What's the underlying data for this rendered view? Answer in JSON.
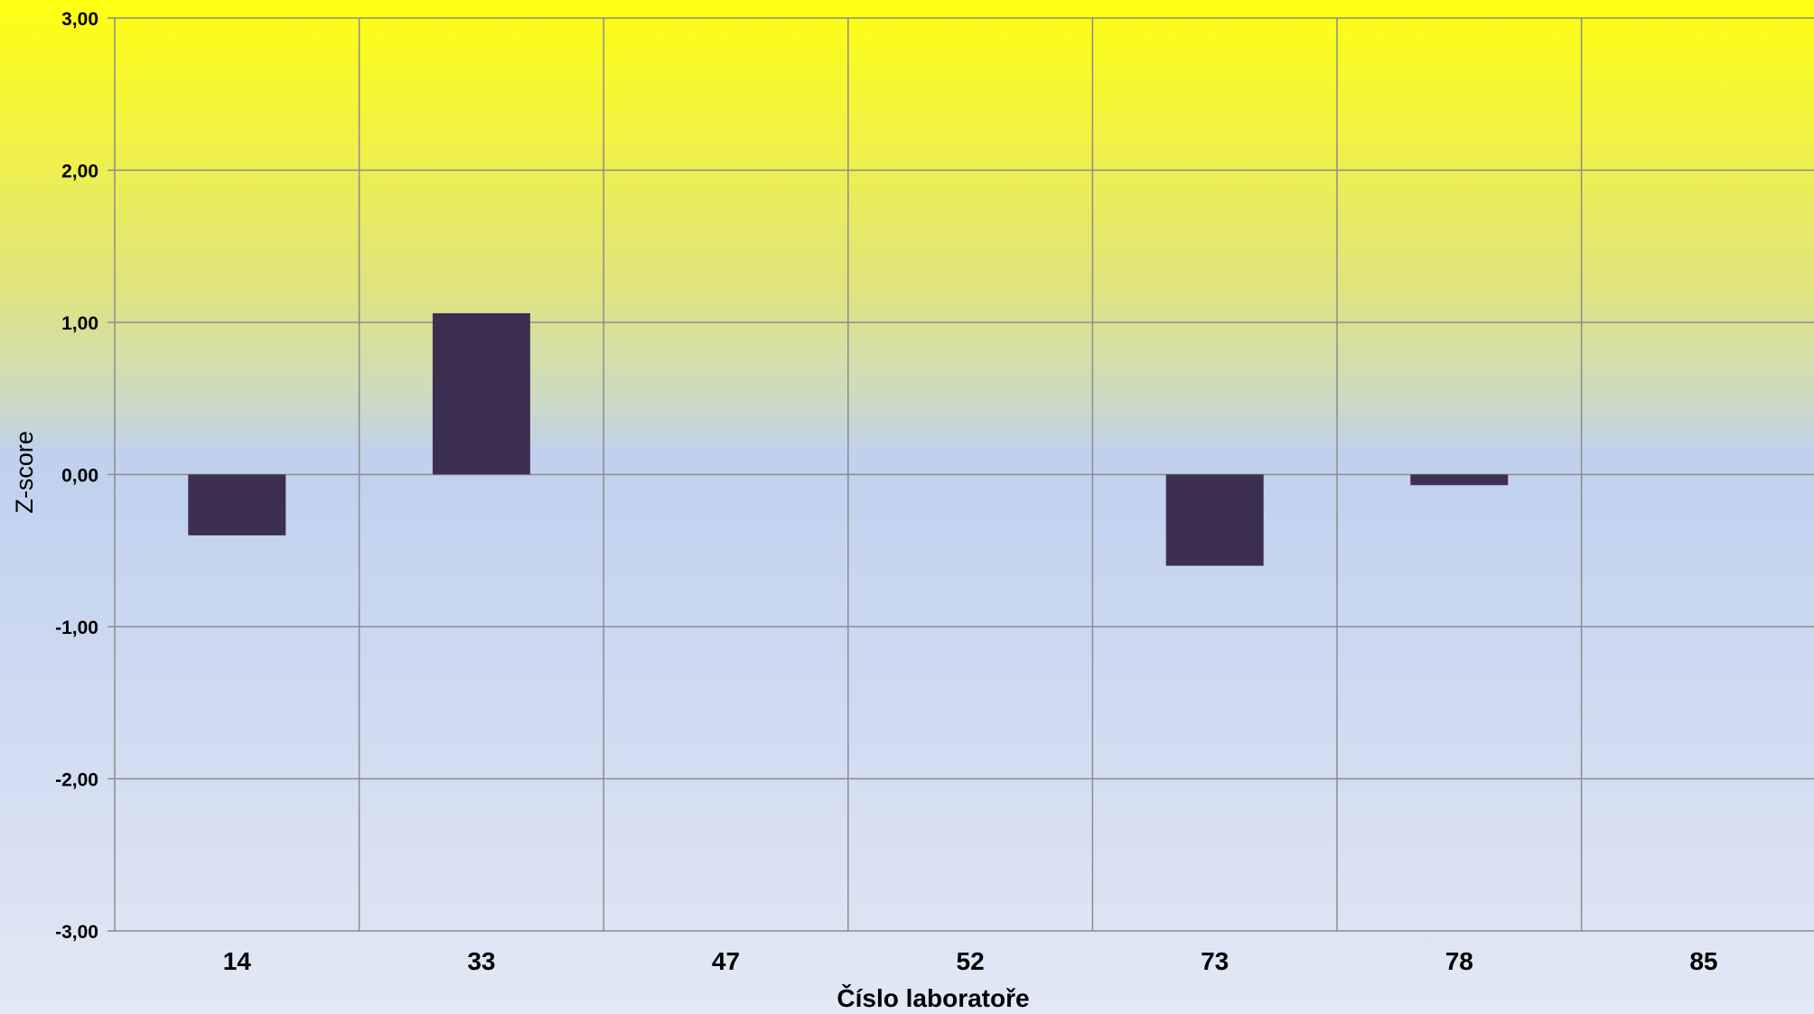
{
  "chart_data": {
    "type": "bar",
    "title": "",
    "xlabel": "Číslo laboratoře",
    "ylabel": "Z-score",
    "categories": [
      "14",
      "33",
      "47",
      "52",
      "73",
      "78",
      "85"
    ],
    "series": [
      {
        "values": [
          -0.4,
          1.06,
          null,
          null,
          -0.6,
          -0.07,
          null
        ]
      }
    ],
    "ylim": [
      -3,
      3
    ],
    "yticks": [
      3,
      2,
      1,
      0,
      -1,
      -2,
      -3
    ],
    "ytick_labels": [
      "3,00",
      "2,00",
      "1,00",
      "0,00",
      "-1,00",
      "-2,00",
      "-3,00"
    ],
    "grid": true,
    "legend": "none",
    "colors": {
      "bar": "#3d2f52",
      "grid": "#8c8c8c",
      "background_top": "#ffff11",
      "background_middle": "#c0d0ee",
      "background_bottom": "#e2e8f4"
    }
  }
}
